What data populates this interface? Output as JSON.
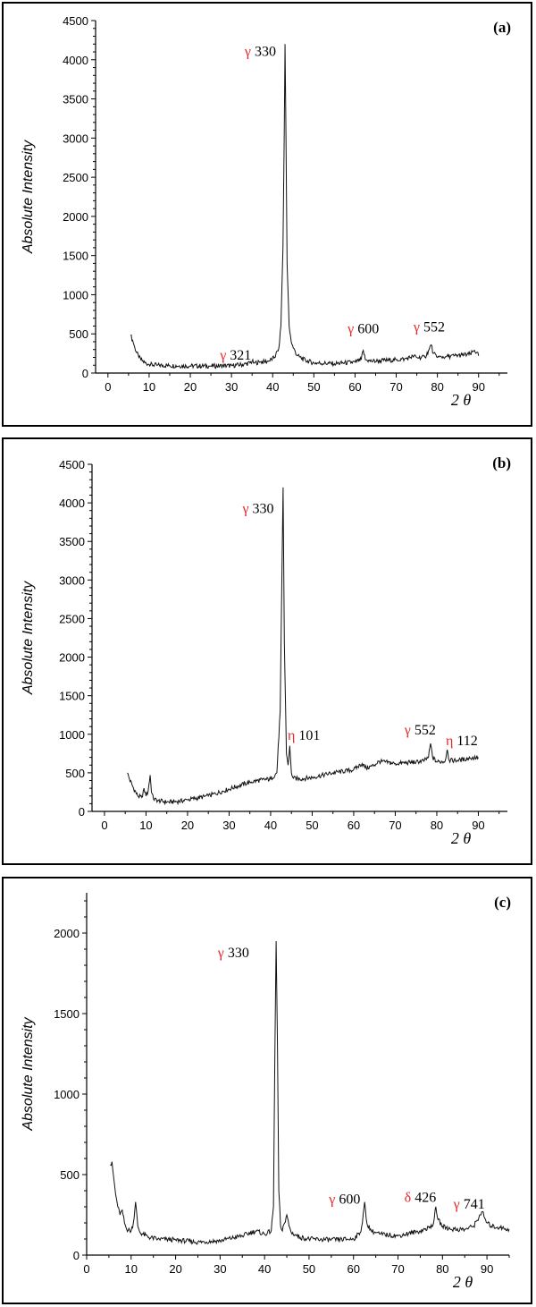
{
  "chart_data": [
    {
      "type": "line",
      "panel_label": "(a)",
      "ylabel": "Absolute Intensity",
      "xlabel": "2 θ",
      "xlim": [
        -3,
        97
      ],
      "ylim": [
        0,
        4500
      ],
      "xticks": [
        0,
        10,
        20,
        30,
        40,
        50,
        60,
        70,
        80,
        90
      ],
      "yticks": [
        0,
        500,
        1000,
        1500,
        2000,
        2500,
        3000,
        3500,
        4000,
        4500
      ],
      "series": [
        {
          "x": [
            5.5,
            6,
            6.5,
            7,
            7.5,
            8,
            9,
            10,
            12,
            15,
            20,
            25,
            30,
            33,
            34.5,
            35,
            35.5,
            37,
            39,
            40.5,
            41.5,
            42,
            42.5,
            42.8,
            43,
            43.2,
            43.5,
            44,
            44.5,
            45,
            46,
            48,
            50,
            55,
            60,
            61.5,
            62,
            62.5,
            63,
            64,
            67,
            70,
            72,
            73.5,
            74,
            75,
            77,
            78,
            78.5,
            79,
            80,
            82,
            84,
            86,
            88,
            89,
            89.5,
            90
          ],
          "y": [
            480,
            420,
            330,
            260,
            200,
            170,
            130,
            110,
            100,
            95,
            90,
            90,
            95,
            110,
            130,
            150,
            130,
            140,
            150,
            200,
            320,
            600,
            1600,
            3000,
            4200,
            3200,
            1400,
            600,
            400,
            320,
            220,
            160,
            130,
            120,
            140,
            170,
            290,
            170,
            160,
            150,
            160,
            170,
            180,
            200,
            220,
            200,
            200,
            300,
            360,
            250,
            200,
            210,
            220,
            230,
            240,
            290,
            260,
            220
          ]
        }
      ],
      "annotations": [
        {
          "symbol": "γ",
          "label": "330",
          "x": 37,
          "y": 4050
        },
        {
          "symbol": "γ",
          "label": "321",
          "x": 31,
          "y": 170
        },
        {
          "symbol": "γ",
          "label": "600",
          "x": 62,
          "y": 510
        },
        {
          "symbol": "γ",
          "label": "552",
          "x": 78,
          "y": 530
        }
      ]
    },
    {
      "type": "line",
      "panel_label": "(b)",
      "ylabel": "Absolute Intensity",
      "xlabel": "2 θ",
      "xlim": [
        -3,
        97
      ],
      "ylim": [
        0,
        4500
      ],
      "xticks": [
        0,
        10,
        20,
        30,
        40,
        50,
        60,
        70,
        80,
        90
      ],
      "yticks": [
        0,
        500,
        1000,
        1500,
        2000,
        2500,
        3000,
        3500,
        4000,
        4500
      ],
      "series": [
        {
          "x": [
            5.5,
            6,
            7,
            8,
            9,
            9.5,
            10,
            10.5,
            11,
            11.3,
            11.8,
            13,
            15,
            18,
            20,
            25,
            30,
            35,
            38,
            40,
            41.5,
            42.3,
            42.7,
            43,
            43.3,
            43.8,
            44.2,
            44.6,
            45,
            45.5,
            47,
            50,
            55,
            60,
            62,
            63,
            65,
            66,
            70,
            75,
            77,
            78,
            78.5,
            79,
            80,
            82,
            82.5,
            83,
            85,
            88,
            90
          ],
          "y": [
            500,
            420,
            300,
            200,
            180,
            300,
            200,
            260,
            470,
            250,
            160,
            140,
            120,
            130,
            150,
            200,
            290,
            380,
            410,
            420,
            500,
            1300,
            3000,
            4200,
            2200,
            750,
            600,
            850,
            500,
            430,
            420,
            440,
            500,
            540,
            620,
            560,
            600,
            650,
            620,
            640,
            660,
            700,
            880,
            700,
            640,
            650,
            800,
            660,
            660,
            690,
            700
          ]
        }
      ],
      "annotations": [
        {
          "symbol": "γ",
          "label": "330",
          "x": 37,
          "y": 3870
        },
        {
          "symbol": "η",
          "label": "101",
          "x": 48,
          "y": 930
        },
        {
          "symbol": "γ",
          "label": "552",
          "x": 76,
          "y": 1000
        },
        {
          "symbol": "η",
          "label": "112",
          "x": 86,
          "y": 860
        }
      ]
    },
    {
      "type": "line",
      "panel_label": "(c)",
      "ylabel": "Absolute Intensity",
      "xlabel": "2 θ",
      "xlim": [
        0,
        95
      ],
      "ylim": [
        0,
        2250
      ],
      "xticks": [
        0,
        10,
        20,
        30,
        40,
        50,
        60,
        70,
        80,
        90
      ],
      "yticks": [
        0,
        500,
        1000,
        1500,
        2000
      ],
      "series": [
        {
          "x": [
            5.3,
            5.7,
            6,
            6.5,
            7,
            7.5,
            8,
            8.5,
            9,
            10,
            10.5,
            11,
            11.5,
            12,
            14,
            16,
            20,
            25,
            30,
            35,
            38,
            40,
            41.5,
            42,
            42.3,
            42.6,
            42.9,
            43.2,
            43.6,
            44,
            44.5,
            45,
            45.5,
            46,
            48,
            50,
            55,
            60,
            61.5,
            62,
            62.5,
            63,
            64,
            66,
            70,
            75,
            77,
            78,
            78.5,
            79,
            80,
            82,
            85,
            87,
            88.5,
            89,
            89.5,
            90,
            91,
            93,
            95
          ],
          "y": [
            560,
            580,
            500,
            380,
            300,
            250,
            280,
            200,
            160,
            150,
            200,
            330,
            180,
            140,
            110,
            100,
            95,
            80,
            90,
            120,
            150,
            130,
            150,
            300,
            1200,
            1950,
            1300,
            400,
            180,
            150,
            200,
            250,
            180,
            140,
            110,
            100,
            95,
            100,
            140,
            200,
            330,
            200,
            150,
            130,
            120,
            150,
            170,
            200,
            300,
            220,
            180,
            160,
            160,
            180,
            250,
            270,
            230,
            200,
            180,
            170,
            160
          ]
        }
      ],
      "annotations": [
        {
          "symbol": "γ",
          "label": "330",
          "x": 33,
          "y": 1850
        },
        {
          "symbol": "γ",
          "label": "600",
          "x": 58,
          "y": 320
        },
        {
          "symbol": "δ",
          "label": "426",
          "x": 75,
          "y": 330
        },
        {
          "symbol": "γ",
          "label": "741",
          "x": 86,
          "y": 290
        }
      ]
    }
  ]
}
